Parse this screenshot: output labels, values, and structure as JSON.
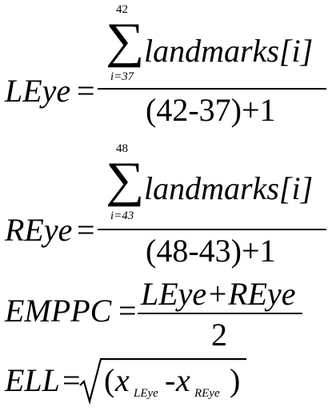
{
  "equations": {
    "leye": {
      "lhs": "LEye",
      "equals": "=",
      "sum_upper": "42",
      "sum_symbol": "∑",
      "sum_lower": "i=37",
      "summand": "landmarks[i]",
      "denominator": "(42-37)+1"
    },
    "reye": {
      "lhs": "REye",
      "equals": "=",
      "sum_upper": "48",
      "sum_symbol": "∑",
      "sum_lower": "i=43",
      "summand": "landmarks[i]",
      "denominator": "(48-43)+1"
    },
    "emppc": {
      "lhs": "EMPPC",
      "equals": "=",
      "numerator": "LEye+REye",
      "denominator": "2"
    },
    "ell": {
      "lhs": "ELL",
      "equals": "=",
      "open_paren": "(",
      "x1": "x",
      "x1_sub": "LEye",
      "minus": "-",
      "x2": "x",
      "x2_sub": "REye",
      "close_paren": ")"
    }
  }
}
